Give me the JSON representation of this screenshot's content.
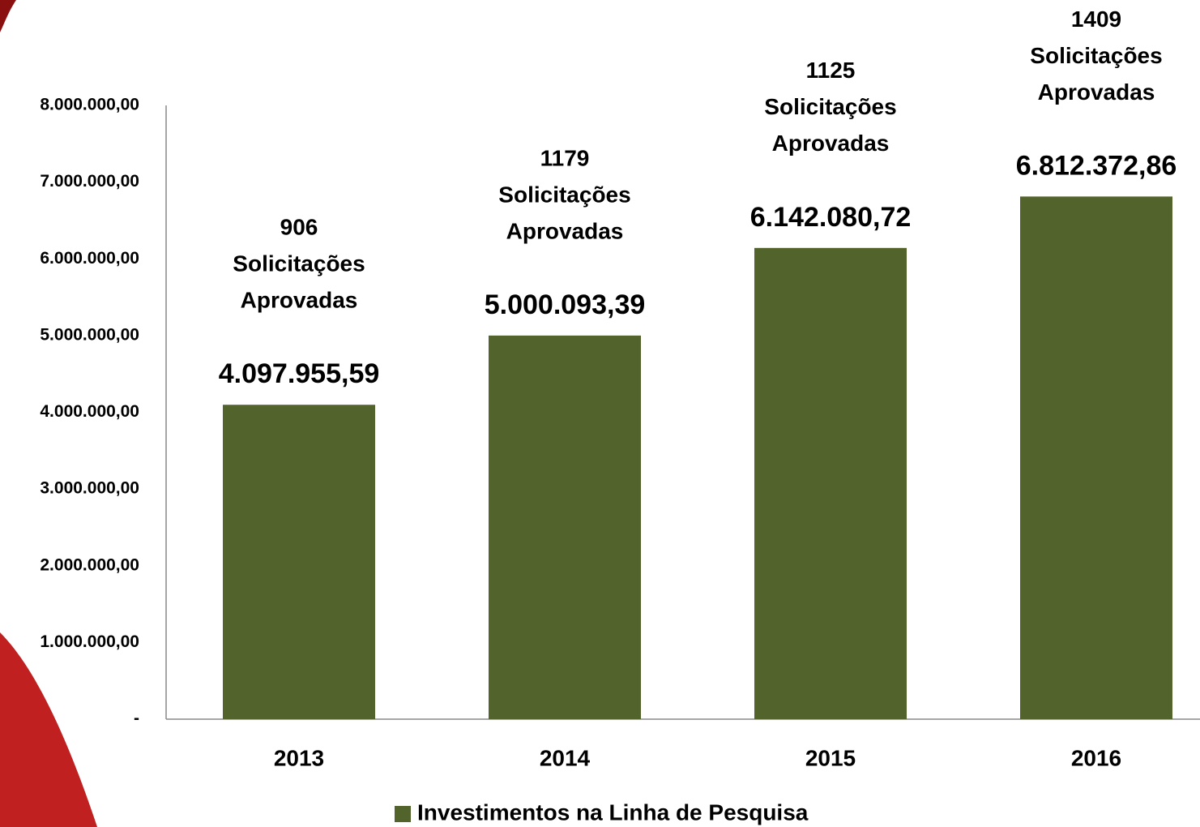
{
  "chart_data": {
    "type": "bar",
    "categories": [
      "2013",
      "2014",
      "2015",
      "2016"
    ],
    "series": [
      {
        "name": "Investimentos na Linha de Pesquisa",
        "color": "#52632b",
        "values": [
          4097955.59,
          5000093.39,
          6142080.72,
          6812372.86
        ],
        "value_labels": [
          "4.097.955,59",
          "5.000.093,39",
          "6.142.080,72",
          "6.812.372,86"
        ]
      }
    ],
    "annotations": [
      [
        "906",
        "Solicitações",
        "Aprovadas"
      ],
      [
        "1179",
        "Solicitações",
        "Aprovadas"
      ],
      [
        "1125",
        "Solicitações",
        "Aprovadas"
      ],
      [
        "1409",
        "Solicitações",
        "Aprovadas"
      ]
    ],
    "ylim": [
      0,
      8000000
    ],
    "yticks": [
      {
        "value": 0,
        "label": "-"
      },
      {
        "value": 1000000,
        "label": "1.000.000,00"
      },
      {
        "value": 2000000,
        "label": "2.000.000,00"
      },
      {
        "value": 3000000,
        "label": "3.000.000,00"
      },
      {
        "value": 4000000,
        "label": "4.000.000,00"
      },
      {
        "value": 5000000,
        "label": "5.000.000,00"
      },
      {
        "value": 6000000,
        "label": "6.000.000,00"
      },
      {
        "value": 7000000,
        "label": "7.000.000,00"
      },
      {
        "value": 8000000,
        "label": "8.000.000,00"
      }
    ],
    "grid": false,
    "legend": "bottom"
  }
}
